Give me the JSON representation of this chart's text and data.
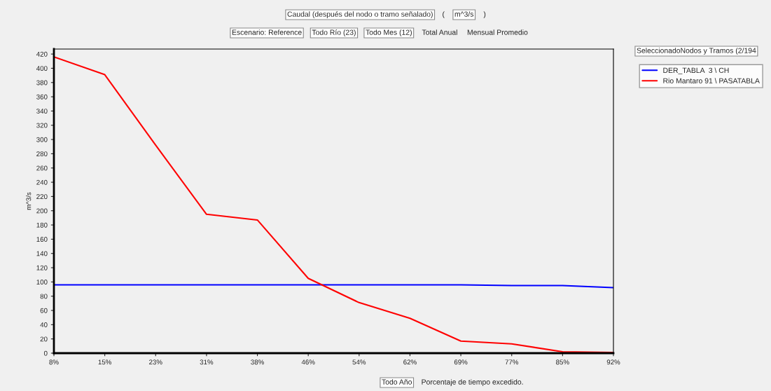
{
  "chart_data": {
    "type": "line",
    "title": "Caudal (después del nodo o tramo señalado)",
    "ylabel": "m^3/s",
    "xlabel": "Porcentaje de tiempo excedido.",
    "categories": [
      "8%",
      "15%",
      "23%",
      "31%",
      "38%",
      "46%",
      "54%",
      "62%",
      "69%",
      "77%",
      "85%",
      "92%"
    ],
    "series": [
      {
        "name": "DER_TABLA  3 \\ CH",
        "color": "#0000ff",
        "values": [
          96,
          96,
          96,
          96,
          96,
          96,
          96,
          96,
          96,
          95,
          95,
          92
        ]
      },
      {
        "name": "Rio Mantaro 91 \\ PASATABLA",
        "color": "#ff0000",
        "values": [
          416,
          391,
          292,
          195,
          187,
          105,
          71,
          49,
          17,
          13,
          2,
          1
        ]
      }
    ],
    "ylim": [
      0,
      427
    ],
    "yticks": [
      0,
      20,
      40,
      60,
      80,
      100,
      120,
      140,
      160,
      180,
      200,
      220,
      240,
      260,
      280,
      300,
      320,
      340,
      360,
      380,
      400,
      420
    ],
    "grid": false,
    "legend": "top right",
    "marker": "none",
    "line_style": "solid",
    "annotations": [
      "(",
      "m^3/s",
      ")",
      "Escenario: Reference",
      "Todo Río (23)",
      "Todo Mes (12)",
      "Total Anual",
      "Mensual Promedio",
      "SeleccionadoNodos y Tramos (2/194",
      "Todo Año"
    ]
  }
}
